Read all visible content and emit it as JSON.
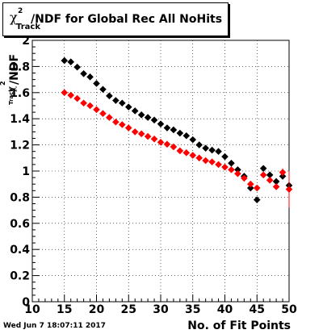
{
  "title": "/NDF for Global Rec All NoHits",
  "title_chi": "χ",
  "title_sup": "2",
  "title_sub": "Track",
  "timestamp": "Wed Jun  7 18:07:11 2017",
  "chart_data": {
    "type": "scatter",
    "xlabel": "No. of Fit Points",
    "ylabel": "/NDF",
    "xlim": [
      10,
      50
    ],
    "ylim": [
      0,
      2
    ],
    "x_ticks": [
      10,
      15,
      20,
      25,
      30,
      35,
      40,
      45,
      50
    ],
    "y_ticks": [
      0,
      0.2,
      0.4,
      0.6,
      0.8,
      1,
      1.2,
      1.4,
      1.6,
      1.8,
      2
    ],
    "x_tick_labels": [
      "10",
      "15",
      "20",
      "25",
      "30",
      "35",
      "40",
      "45",
      "50"
    ],
    "y_tick_labels": [
      "0",
      "0.2",
      "0.4",
      "0.6",
      "0.8",
      "1",
      "1.2",
      "1.4",
      "1.6",
      "1.8",
      "2"
    ],
    "series": [
      {
        "color": "#000000",
        "x": [
          15,
          16,
          17,
          18,
          19,
          20,
          21,
          22,
          23,
          24,
          25,
          26,
          27,
          28,
          29,
          30,
          31,
          32,
          33,
          34,
          35,
          36,
          37,
          38,
          39,
          40,
          41,
          42,
          43,
          44,
          45,
          46,
          47,
          48,
          49,
          50
        ],
        "y": [
          1.845,
          1.835,
          1.795,
          1.745,
          1.72,
          1.67,
          1.625,
          1.575,
          1.54,
          1.52,
          1.49,
          1.46,
          1.43,
          1.41,
          1.39,
          1.36,
          1.33,
          1.315,
          1.29,
          1.27,
          1.24,
          1.2,
          1.175,
          1.16,
          1.15,
          1.11,
          1.06,
          1.01,
          0.96,
          0.87,
          0.78,
          1.02,
          0.97,
          0.92,
          0.96,
          0.89
        ]
      },
      {
        "color": "#ff0000",
        "x": [
          15,
          16,
          17,
          18,
          19,
          20,
          21,
          22,
          23,
          24,
          25,
          26,
          27,
          28,
          29,
          30,
          31,
          32,
          33,
          34,
          35,
          36,
          37,
          38,
          39,
          40,
          41,
          42,
          43,
          44,
          45,
          46,
          47,
          48,
          49,
          50
        ],
        "y": [
          1.6,
          1.58,
          1.555,
          1.52,
          1.5,
          1.47,
          1.44,
          1.41,
          1.375,
          1.355,
          1.33,
          1.3,
          1.285,
          1.265,
          1.245,
          1.22,
          1.205,
          1.185,
          1.155,
          1.14,
          1.12,
          1.1,
          1.08,
          1.07,
          1.05,
          1.03,
          1.01,
          0.98,
          0.945,
          0.9,
          0.87,
          0.97,
          0.93,
          0.88,
          0.99,
          0.86
        ],
        "errors": [
          0,
          0,
          0,
          0,
          0,
          0,
          0,
          0,
          0,
          0,
          0,
          0,
          0,
          0,
          0,
          0,
          0,
          0,
          0,
          0,
          0,
          0,
          0,
          0,
          0,
          0,
          0,
          0,
          0,
          0,
          0,
          0,
          0,
          0,
          0.03,
          0.14
        ]
      }
    ]
  }
}
